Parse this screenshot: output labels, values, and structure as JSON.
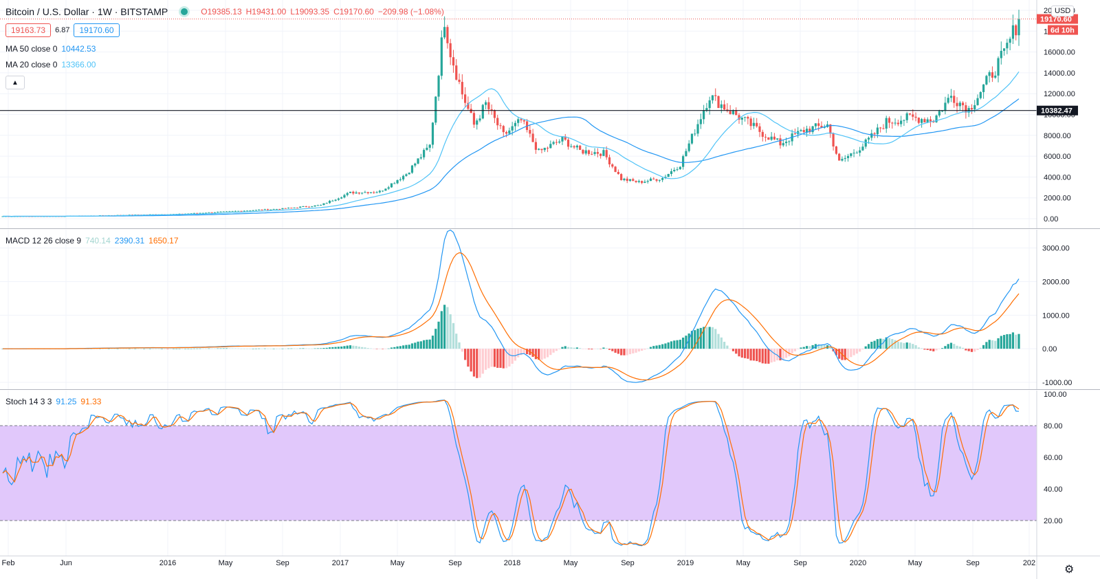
{
  "header": {
    "symbol": "Bitcoin / U.S. Dollar · 1W · BITSTAMP",
    "open": "O19385.13",
    "high": "H19431.00",
    "low": "L19093.35",
    "close": "C19170.60",
    "change": "−209.98 (−1.08%)",
    "bid": "19163.73",
    "spread": "6.87",
    "ask": "19170.60",
    "ma50_label": "MA 50 close 0",
    "ma50_value": "10442.53",
    "ma20_label": "MA 20 close 0",
    "ma20_value": "13366.00",
    "collapse_icon": "chevron-up-icon"
  },
  "price_axis": {
    "currency": "USD",
    "ticks": [
      "20000.00",
      "18000.00",
      "16000.00",
      "14000.00",
      "12000.00",
      "10000.00",
      "8000.00",
      "6000.00",
      "4000.00",
      "2000.00",
      "0.00"
    ],
    "last_price_label": "19170.60",
    "countdown_label": "6d 10h",
    "hline_label": "10382.47",
    "hline_value": 10382.47
  },
  "macd": {
    "label": "MACD 12 26 close 9",
    "hist_value": "740.14",
    "macd_value": "2390.31",
    "signal_value": "1650.17",
    "ticks": [
      "3000.00",
      "2000.00",
      "1000.00",
      "0.00",
      "-1000.00"
    ]
  },
  "stoch": {
    "label": "Stoch 14 3 3",
    "k_value": "91.25",
    "d_value": "91.33",
    "ticks": [
      "100.00",
      "80.00",
      "60.00",
      "40.00",
      "20.00"
    ]
  },
  "time_axis": {
    "labels": [
      "Feb",
      "Jun",
      "2016",
      "May",
      "Sep",
      "2017",
      "May",
      "Sep",
      "2018",
      "May",
      "Sep",
      "2019",
      "May",
      "Sep",
      "2020",
      "May",
      "Sep",
      "202"
    ]
  },
  "colors": {
    "up": "#26a69a",
    "down": "#ef5350",
    "ma20": "#4fc3f7",
    "ma50": "#2196f3",
    "macd": "#2196f3",
    "signal": "#ff6d00",
    "stoch_band": "#e1c8fb",
    "hline": "#131722"
  },
  "settings_icon": "gear-icon",
  "chart_data": {
    "type": "line",
    "title": "Bitcoin / U.S. Dollar · 1W · BITSTAMP",
    "ylim": [
      0,
      20000
    ],
    "x": [
      "2015-01",
      "2015-06",
      "2016-01",
      "2016-06",
      "2017-01",
      "2017-06",
      "2017-10",
      "2017-12",
      "2018-01",
      "2018-04",
      "2018-07",
      "2018-11",
      "2019-01",
      "2019-04",
      "2019-06",
      "2019-09",
      "2020-01",
      "2020-03",
      "2020-06",
      "2020-08",
      "2020-10",
      "2020-11"
    ],
    "series": [
      {
        "name": "Close",
        "values": [
          230,
          240,
          400,
          650,
          960,
          2500,
          4400,
          19200,
          13500,
          9000,
          6300,
          3800,
          3500,
          5200,
          11800,
          9700,
          7200,
          5400,
          9600,
          11700,
          13100,
          19170
        ]
      }
    ],
    "hline": 10382.47
  }
}
